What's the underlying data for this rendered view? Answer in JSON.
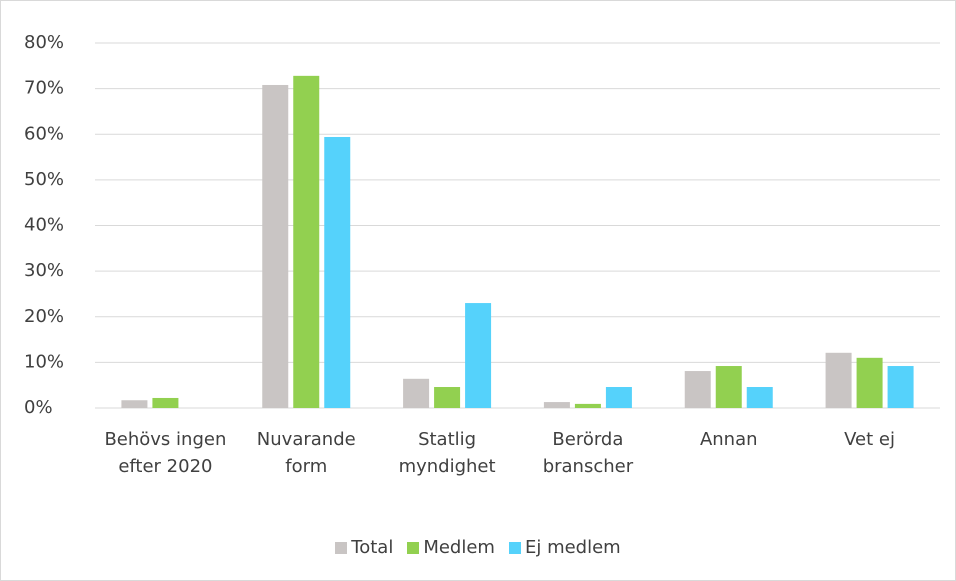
{
  "chart_data": {
    "type": "bar",
    "categories": [
      "Behövs ingen efter 2020",
      "Nuvarande form",
      "Statlig myndighet",
      "Berörda branscher",
      "Annan",
      "Vet ej"
    ],
    "series": [
      {
        "name": "Total",
        "color": "#c9c5c4",
        "values": [
          1.7,
          70.8,
          6.4,
          1.3,
          8.1,
          12.1
        ]
      },
      {
        "name": "Medlem",
        "color": "#92d050",
        "values": [
          2.2,
          72.8,
          4.6,
          0.9,
          9.2,
          11.0
        ]
      },
      {
        "name": "Ej medlem",
        "color": "#55d2fb",
        "values": [
          0,
          59.4,
          23.0,
          4.6,
          4.6,
          9.2
        ]
      }
    ],
    "ylim": [
      0,
      80
    ],
    "yticks": [
      {
        "value": 0,
        "label": "0%"
      },
      {
        "value": 10,
        "label": "10%"
      },
      {
        "value": 20,
        "label": "20%"
      },
      {
        "value": 30,
        "label": "30%"
      },
      {
        "value": 40,
        "label": "40%"
      },
      {
        "value": 50,
        "label": "50%"
      },
      {
        "value": 60,
        "label": "60%"
      },
      {
        "value": 70,
        "label": "70%"
      },
      {
        "value": 80,
        "label": "80%"
      }
    ],
    "grid": true
  }
}
